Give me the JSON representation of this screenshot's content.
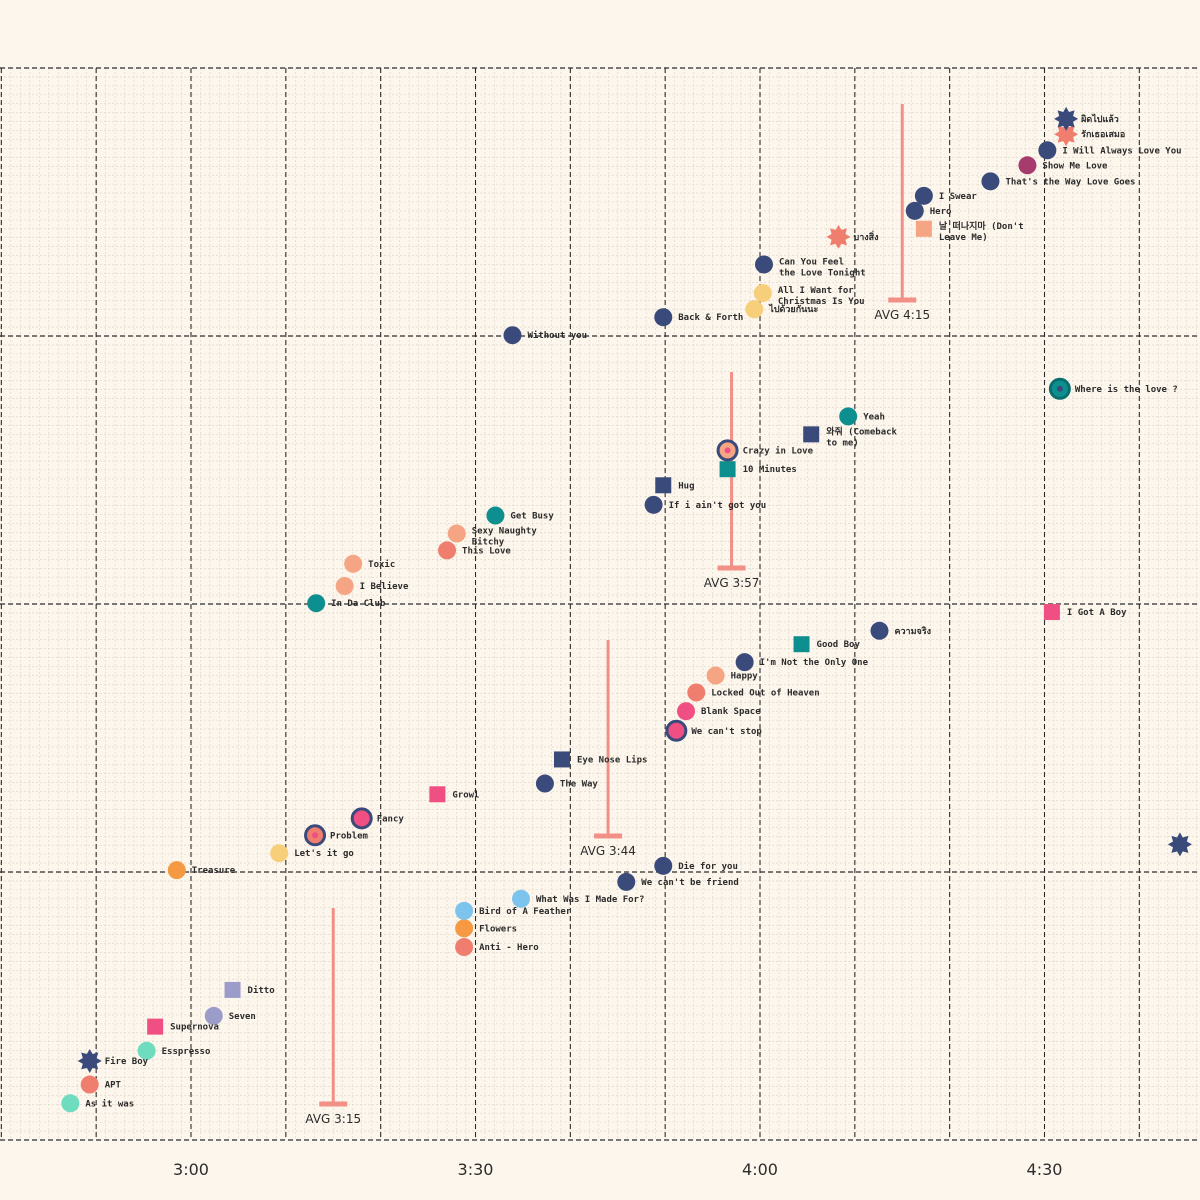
{
  "chart_data": {
    "type": "scatter",
    "title": "",
    "xlabel": "",
    "ylabel": "",
    "x_unit": "minutes (song duration)",
    "x_ticks": [
      {
        "value": 3.0,
        "label": "3:00"
      },
      {
        "value": 3.5,
        "label": "3:30"
      },
      {
        "value": 4.0,
        "label": "4:00"
      },
      {
        "value": 4.5,
        "label": "4:30"
      }
    ],
    "xlim": [
      2.68,
      4.78
    ],
    "ylim": [
      0,
      4
    ],
    "grid": true,
    "averages": [
      {
        "label": "AVG 3:15",
        "value": 3.25,
        "band": 0
      },
      {
        "label": "AVG 3:44",
        "value": 3.733,
        "band": 1
      },
      {
        "label": "AVG 3:57",
        "value": 3.95,
        "band": 2
      },
      {
        "label": "AVG 4:15",
        "value": 4.25,
        "band": 3
      }
    ],
    "colors": {
      "navy": "#3a4a7a",
      "teal": "#0e8f8f",
      "salmon": "#f07e6e",
      "peach": "#f5a584",
      "pink": "#ef4f82",
      "orange": "#f59a42",
      "yellow": "#f7cf7a",
      "sky": "#7cc4ee",
      "mint": "#6fdcc0",
      "lavender": "#9b9cc9",
      "magenta": "#a63b6e",
      "avg": "#f29088"
    },
    "series": [
      {
        "name": "band-1",
        "points": [
          {
            "label": "As it was",
            "x": 2.788,
            "y": 0.137,
            "shape": "circle",
            "color": "mint"
          },
          {
            "label": "APT",
            "x": 2.822,
            "y": 0.207,
            "shape": "circle",
            "color": "salmon"
          },
          {
            "label": "Fire Boy",
            "x": 2.822,
            "y": 0.295,
            "shape": "star",
            "color": "navy"
          },
          {
            "label": "Esspresso",
            "x": 2.922,
            "y": 0.333,
            "shape": "circle",
            "color": "mint"
          },
          {
            "label": "Supernova",
            "x": 2.937,
            "y": 0.423,
            "shape": "square",
            "color": "pink"
          },
          {
            "label": "Seven",
            "x": 3.04,
            "y": 0.463,
            "shape": "circle",
            "color": "lavender"
          },
          {
            "label": "Ditto",
            "x": 3.073,
            "y": 0.56,
            "shape": "square",
            "color": "lavender"
          },
          {
            "label": "Anti - Hero",
            "x": 3.48,
            "y": 0.72,
            "shape": "circle",
            "color": "salmon"
          },
          {
            "label": "Flowers",
            "x": 3.48,
            "y": 0.79,
            "shape": "circle",
            "color": "orange"
          },
          {
            "label": "Bird of A Feather",
            "x": 3.48,
            "y": 0.855,
            "shape": "circle",
            "color": "sky"
          },
          {
            "label": "What Was I Made For?",
            "x": 3.58,
            "y": 0.9,
            "shape": "circle",
            "color": "sky"
          },
          {
            "label": "We can't be friend",
            "x": 3.765,
            "y": 0.963,
            "shape": "circle",
            "color": "navy"
          },
          {
            "label": "Die for you",
            "x": 3.83,
            "y": 1.023,
            "shape": "circle",
            "color": "navy"
          },
          {
            "label": "",
            "x": 4.738,
            "y": 1.103,
            "shape": "star",
            "color": "navy"
          }
        ]
      },
      {
        "name": "band-2",
        "points": [
          {
            "label": "Treasure",
            "x": 2.975,
            "y": 1.007,
            "shape": "circle",
            "color": "orange"
          },
          {
            "label": "Let's it go",
            "x": 3.155,
            "y": 1.07,
            "shape": "circle",
            "color": "yellow"
          },
          {
            "label": "Problem",
            "x": 3.218,
            "y": 1.137,
            "shape": "ring",
            "color": "salmon"
          },
          {
            "label": "Fancy",
            "x": 3.3,
            "y": 1.2,
            "shape": "ring",
            "color": "pink"
          },
          {
            "label": "Growl",
            "x": 3.433,
            "y": 1.29,
            "shape": "square",
            "color": "pink"
          },
          {
            "label": "The Way",
            "x": 3.622,
            "y": 1.33,
            "shape": "circle",
            "color": "navy"
          },
          {
            "label": "Eye Nose Lips",
            "x": 3.652,
            "y": 1.42,
            "shape": "square",
            "color": "navy"
          },
          {
            "label": "We can't stop",
            "x": 3.853,
            "y": 1.527,
            "shape": "ring",
            "color": "pink"
          },
          {
            "label": "Blank Space",
            "x": 3.87,
            "y": 1.6,
            "shape": "circle",
            "color": "pink"
          },
          {
            "label": "Locked Out of Heaven",
            "x": 3.888,
            "y": 1.67,
            "shape": "circle",
            "color": "salmon"
          },
          {
            "label": "Happy",
            "x": 3.922,
            "y": 1.733,
            "shape": "circle",
            "color": "peach"
          },
          {
            "label": "I'm Not the Only One",
            "x": 3.973,
            "y": 1.783,
            "shape": "circle",
            "color": "navy"
          },
          {
            "label": "Good Boy",
            "x": 4.073,
            "y": 1.85,
            "shape": "square",
            "color": "teal"
          },
          {
            "label": "ความจริง",
            "x": 4.21,
            "y": 1.9,
            "shape": "circle",
            "color": "navy"
          },
          {
            "label": "I Got A Boy",
            "x": 4.513,
            "y": 1.97,
            "shape": "square",
            "color": "pink"
          }
        ]
      },
      {
        "name": "band-3",
        "points": [
          {
            "label": "In Da Club",
            "x": 3.22,
            "y": 2.003,
            "shape": "circle",
            "color": "teal"
          },
          {
            "label": "I Believe",
            "x": 3.27,
            "y": 2.067,
            "shape": "circle",
            "color": "peach"
          },
          {
            "label": "Toxic",
            "x": 3.285,
            "y": 2.15,
            "shape": "circle",
            "color": "peach"
          },
          {
            "label": "This Love",
            "x": 3.45,
            "y": 2.2,
            "shape": "circle",
            "color": "salmon"
          },
          {
            "label": "Sexy Naughty Bitchy",
            "x": 3.467,
            "y": 2.263,
            "shape": "circle",
            "color": "peach"
          },
          {
            "label": "Get Busy",
            "x": 3.535,
            "y": 2.33,
            "shape": "circle",
            "color": "teal"
          },
          {
            "label": "If i ain't got you",
            "x": 3.813,
            "y": 2.37,
            "shape": "circle",
            "color": "navy"
          },
          {
            "label": "Hug",
            "x": 3.83,
            "y": 2.443,
            "shape": "square",
            "color": "navy"
          },
          {
            "label": "10 Minutes",
            "x": 3.943,
            "y": 2.503,
            "shape": "square",
            "color": "teal"
          },
          {
            "label": "Crazy in Love",
            "x": 3.943,
            "y": 2.573,
            "shape": "ring",
            "color": "peach"
          },
          {
            "label": "와줘 (Comeback to me)",
            "x": 4.09,
            "y": 2.633,
            "shape": "square",
            "color": "navy"
          },
          {
            "label": "Yeah",
            "x": 4.155,
            "y": 2.7,
            "shape": "circle",
            "color": "teal"
          },
          {
            "label": "Where is the love ?",
            "x": 4.527,
            "y": 2.803,
            "shape": "ring",
            "color": "teal"
          }
        ]
      },
      {
        "name": "band-4",
        "points": [
          {
            "label": "Without you",
            "x": 3.565,
            "y": 3.003,
            "shape": "circle",
            "color": "navy"
          },
          {
            "label": "Back & Forth",
            "x": 3.83,
            "y": 3.07,
            "shape": "circle",
            "color": "navy"
          },
          {
            "label": "ไปด้วยกันนะ",
            "x": 3.99,
            "y": 3.1,
            "shape": "circle",
            "color": "yellow"
          },
          {
            "label": "All I Want for Christmas Is You",
            "x": 4.005,
            "y": 3.16,
            "shape": "circle",
            "color": "yellow"
          },
          {
            "label": "Can You Feel the Love Tonight",
            "x": 4.007,
            "y": 3.267,
            "shape": "circle",
            "color": "navy"
          },
          {
            "label": "บางสิ่ง",
            "x": 4.138,
            "y": 3.37,
            "shape": "star",
            "color": "salmon"
          },
          {
            "label": "날 떠나지마 (Don't Leave Me)",
            "x": 4.288,
            "y": 3.4,
            "shape": "square",
            "color": "peach"
          },
          {
            "label": "Hero",
            "x": 4.272,
            "y": 3.467,
            "shape": "circle",
            "color": "navy"
          },
          {
            "label": "I Swear",
            "x": 4.288,
            "y": 3.523,
            "shape": "circle",
            "color": "navy"
          },
          {
            "label": "That's the Way Love Goes",
            "x": 4.405,
            "y": 3.577,
            "shape": "circle",
            "color": "navy"
          },
          {
            "label": "Show Me Love",
            "x": 4.47,
            "y": 3.637,
            "shape": "circle",
            "color": "magenta"
          },
          {
            "label": "I Will Always Love You",
            "x": 4.505,
            "y": 3.693,
            "shape": "circle",
            "color": "navy"
          },
          {
            "label": "รักเธอเสมอ",
            "x": 4.538,
            "y": 3.753,
            "shape": "star",
            "color": "salmon"
          },
          {
            "label": "ผิดไปแล้ว",
            "x": 4.538,
            "y": 3.81,
            "shape": "star",
            "color": "navy"
          }
        ]
      }
    ]
  }
}
